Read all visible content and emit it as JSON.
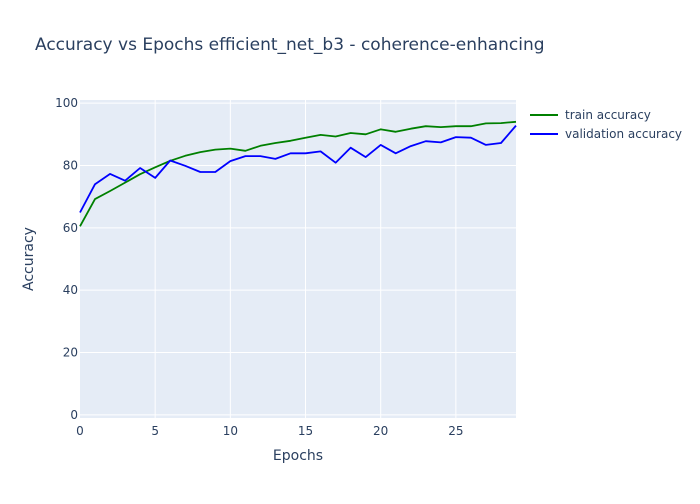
{
  "chart_data": {
    "type": "line",
    "title": "Accuracy vs Epochs efficient_net_b3 - coherence-enhancing",
    "xlabel": "Epochs",
    "ylabel": "Accuracy",
    "xlim": [
      0,
      29
    ],
    "ylim": [
      -1,
      101
    ],
    "xticks": [
      0,
      5,
      10,
      15,
      20,
      25
    ],
    "yticks": [
      0,
      20,
      40,
      60,
      80,
      100
    ],
    "grid": true,
    "legend_position": "top-right",
    "background_color": "#e5ecf6",
    "x": [
      0,
      1,
      2,
      3,
      4,
      5,
      6,
      7,
      8,
      9,
      10,
      11,
      12,
      13,
      14,
      15,
      16,
      17,
      18,
      19,
      20,
      21,
      22,
      23,
      24,
      25,
      26,
      27,
      28,
      29
    ],
    "series": [
      {
        "name": "train accuracy",
        "color": "#008000",
        "values": [
          60.5,
          69.2,
          71.8,
          74.5,
          77.2,
          79.4,
          81.5,
          83.1,
          84.3,
          85.1,
          85.4,
          84.7,
          86.3,
          87.2,
          87.9,
          88.9,
          89.8,
          89.3,
          90.4,
          90.0,
          91.6,
          90.8,
          91.8,
          92.6,
          92.3,
          92.6,
          92.6,
          93.5,
          93.6,
          94.0
        ]
      },
      {
        "name": "validation accuracy",
        "color": "#0000ff",
        "values": [
          64.9,
          74.0,
          77.3,
          75.1,
          79.2,
          76.0,
          81.6,
          79.9,
          77.9,
          77.9,
          81.4,
          83.0,
          83.0,
          82.1,
          83.9,
          83.9,
          84.5,
          80.9,
          85.7,
          82.7,
          86.6,
          83.9,
          86.2,
          87.8,
          87.4,
          89.1,
          88.9,
          86.6,
          87.2,
          92.8
        ]
      }
    ]
  }
}
